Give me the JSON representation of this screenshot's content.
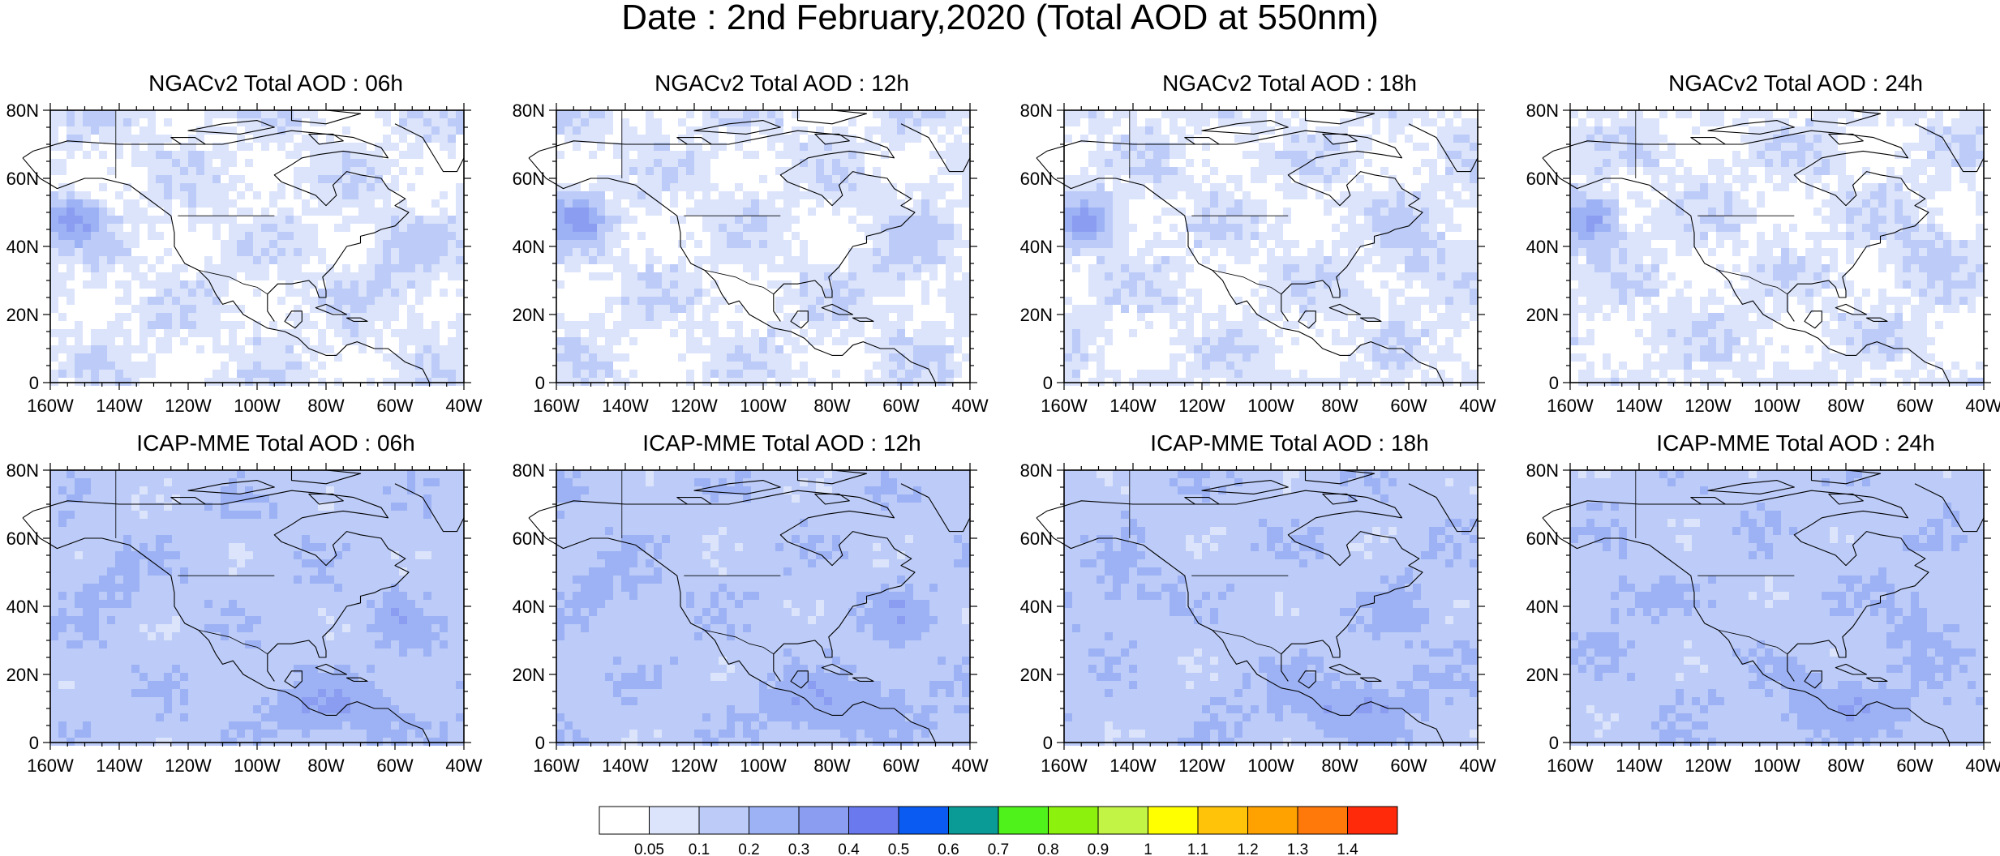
{
  "title": "Date : 2nd February,2020 (Total AOD at 550nm)",
  "panels": [
    {
      "title": "NGACv2 Total AOD : 06h"
    },
    {
      "title": "NGACv2 Total AOD : 12h"
    },
    {
      "title": "NGACv2 Total AOD : 18h"
    },
    {
      "title": "NGACv2 Total AOD : 24h"
    },
    {
      "title": "ICAP-MME Total AOD : 06h"
    },
    {
      "title": "ICAP-MME Total AOD : 12h"
    },
    {
      "title": "ICAP-MME Total AOD : 18h"
    },
    {
      "title": "ICAP-MME Total AOD : 24h"
    }
  ],
  "map_extent": {
    "lon": [
      -160,
      -40
    ],
    "lat": [
      0,
      80
    ]
  },
  "lat_ticks": [
    "80N",
    "60N",
    "40N",
    "20N",
    "0"
  ],
  "lon_ticks": [
    "160W",
    "140W",
    "120W",
    "100W",
    "80W",
    "60W",
    "40W"
  ],
  "colorbar": {
    "colors": [
      "#ffffff",
      "#dce4fb",
      "#bccbf7",
      "#9db2f4",
      "#8a9df1",
      "#6a7aee",
      "#0a5bf2",
      "#0a9b96",
      "#4ff21a",
      "#8cf20d",
      "#c2f445",
      "#ffff00",
      "#ffc409",
      "#ffa200",
      "#ff780a",
      "#ff2a0a"
    ],
    "labels": [
      "0.05",
      "0.1",
      "0.2",
      "0.3",
      "0.4",
      "0.5",
      "0.6",
      "0.7",
      "0.8",
      "0.9",
      "1",
      "1.1",
      "1.2",
      "1.3",
      "1.4"
    ]
  }
}
